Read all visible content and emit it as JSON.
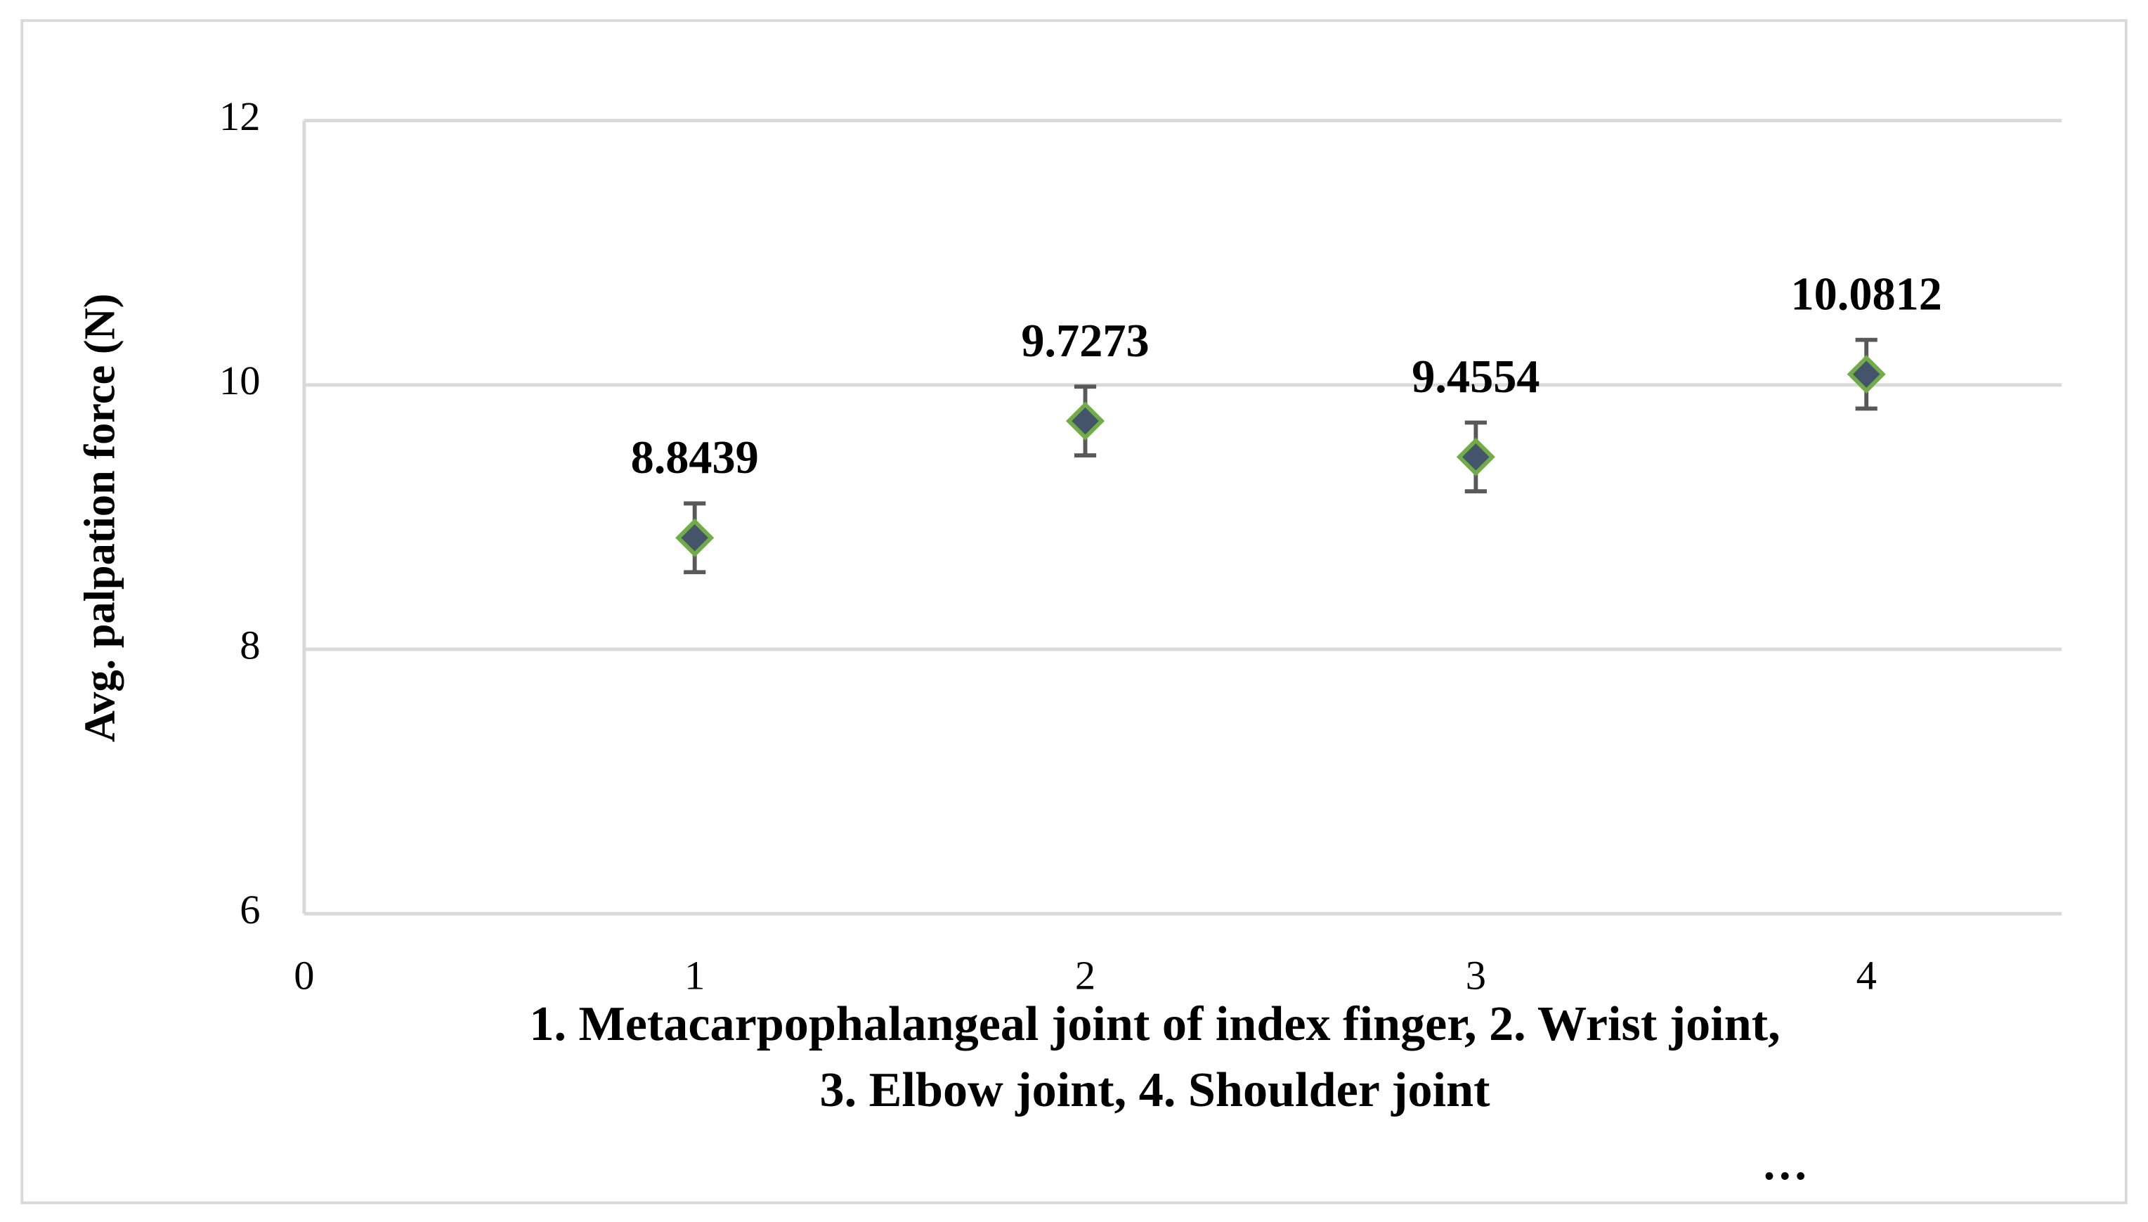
{
  "chart_data": {
    "type": "scatter",
    "y_label": "Avg. palpation force (N)",
    "x_label_lines": [
      "1. Metacarpophalangeal joint of index finger, 2. Wrist joint,",
      "3. Elbow joint, 4. Shoulder joint"
    ],
    "annotation": "…",
    "x": [
      1,
      2,
      3,
      4
    ],
    "values": [
      8.8439,
      9.7273,
      9.4554,
      10.0812
    ],
    "errors": [
      0.26,
      0.26,
      0.26,
      0.26
    ],
    "color": "#44546a",
    "edge_color": "#70ad47",
    "error_color": "#595959",
    "xlim": [
      0,
      4.5
    ],
    "xticks": [
      0,
      1,
      2,
      3,
      4
    ],
    "ylim": [
      6,
      12
    ],
    "yticks": [
      6,
      8,
      10,
      12
    ],
    "grid": true
  }
}
